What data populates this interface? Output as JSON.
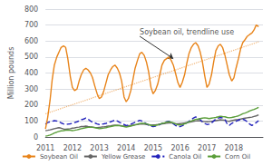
{
  "chart_data": {
    "type": "line",
    "ylabel": "Million pounds",
    "xlim": [
      2011.0,
      2019.08
    ],
    "xticks": [
      2011,
      2012,
      2013,
      2014,
      2015,
      2016,
      2017,
      2018
    ],
    "ylim": [
      0,
      800
    ],
    "yticks": [
      0,
      100,
      200,
      300,
      400,
      500,
      600,
      700,
      800
    ],
    "grid": true,
    "legend": "bottom",
    "x": [
      2011.0,
      2011.08,
      2011.17,
      2011.25,
      2011.33,
      2011.42,
      2011.5,
      2011.58,
      2011.67,
      2011.75,
      2011.83,
      2011.92,
      2012.0,
      2012.08,
      2012.17,
      2012.25,
      2012.33,
      2012.42,
      2012.5,
      2012.58,
      2012.67,
      2012.75,
      2012.83,
      2012.92,
      2013.0,
      2013.08,
      2013.17,
      2013.25,
      2013.33,
      2013.42,
      2013.5,
      2013.58,
      2013.67,
      2013.75,
      2013.83,
      2013.92,
      2014.0,
      2014.08,
      2014.17,
      2014.25,
      2014.33,
      2014.42,
      2014.5,
      2014.58,
      2014.67,
      2014.75,
      2014.83,
      2014.92,
      2015.0,
      2015.08,
      2015.17,
      2015.25,
      2015.33,
      2015.42,
      2015.5,
      2015.58,
      2015.67,
      2015.75,
      2015.83,
      2015.92,
      2016.0,
      2016.08,
      2016.17,
      2016.25,
      2016.33,
      2016.42,
      2016.5,
      2016.58,
      2016.67,
      2016.75,
      2016.83,
      2016.92,
      2017.0,
      2017.08,
      2017.17,
      2017.25,
      2017.33,
      2017.42,
      2017.5,
      2017.58,
      2017.67,
      2017.75,
      2017.83,
      2017.92,
      2018.0,
      2018.08,
      2018.17,
      2018.25,
      2018.33,
      2018.42,
      2018.5,
      2018.58,
      2018.67,
      2018.75,
      2018.83,
      2018.92
    ],
    "series": [
      {
        "color": "#E8841A",
        "line_style": "dotted",
        "x": [
          2011.0,
          2018.92
        ],
        "values": [
          145,
          595
        ]
      },
      {
        "name": "Soybean Oil",
        "color": "#E8841A",
        "line_style": "solid",
        "values": [
          50,
          120,
          230,
          360,
          450,
          500,
          530,
          560,
          570,
          560,
          490,
          380,
          310,
          290,
          300,
          350,
          390,
          420,
          430,
          420,
          400,
          370,
          320,
          270,
          240,
          250,
          290,
          340,
          390,
          420,
          440,
          450,
          430,
          400,
          350,
          250,
          220,
          240,
          290,
          360,
          430,
          480,
          520,
          530,
          510,
          470,
          410,
          310,
          270,
          290,
          330,
          390,
          450,
          480,
          490,
          500,
          480,
          450,
          400,
          340,
          310,
          340,
          390,
          460,
          520,
          560,
          580,
          590,
          570,
          530,
          470,
          380,
          310,
          330,
          390,
          470,
          540,
          570,
          580,
          560,
          510,
          450,
          390,
          350,
          370,
          430,
          490,
          550,
          590,
          610,
          630,
          640,
          650,
          670,
          700,
          690
        ]
      },
      {
        "name": "Yellow Grease",
        "color": "#666666",
        "line_style": "solid",
        "values": [
          40,
          42,
          45,
          48,
          52,
          55,
          58,
          55,
          50,
          48,
          50,
          52,
          55,
          57,
          60,
          62,
          65,
          65,
          68,
          65,
          63,
          62,
          60,
          58,
          60,
          62,
          63,
          65,
          68,
          70,
          72,
          74,
          73,
          72,
          70,
          68,
          68,
          70,
          72,
          74,
          76,
          78,
          80,
          82,
          80,
          78,
          76,
          74,
          75,
          76,
          78,
          80,
          82,
          84,
          86,
          88,
          87,
          86,
          84,
          82,
          84,
          86,
          88,
          90,
          92,
          95,
          98,
          100,
          102,
          100,
          98,
          96,
          95,
          96,
          98,
          100,
          102,
          105,
          108,
          106,
          104,
          100,
          98,
          102,
          105,
          108,
          110,
          112,
          115,
          118,
          120,
          122,
          124,
          128,
          132,
          138
        ]
      },
      {
        "name": "Canola Oil",
        "color": "#2222BB",
        "line_style": "dashed",
        "values": [
          80,
          90,
          95,
          98,
          102,
          100,
          95,
          88,
          82,
          78,
          80,
          82,
          85,
          90,
          95,
          100,
          108,
          112,
          118,
          112,
          100,
          92,
          88,
          82,
          78,
          80,
          82,
          85,
          90,
          95,
          100,
          105,
          100,
          92,
          85,
          78,
          72,
          75,
          80,
          86,
          92,
          98,
          104,
          100,
          92,
          82,
          74,
          68,
          65,
          68,
          72,
          78,
          85,
          90,
          95,
          98,
          92,
          82,
          72,
          65,
          65,
          70,
          78,
          88,
          98,
          110,
          118,
          125,
          118,
          108,
          95,
          85,
          78,
          80,
          88,
          100,
          112,
          118,
          122,
          118,
          108,
          82,
          72,
          85,
          92,
          98,
          105,
          110,
          112,
          105,
          95,
          82,
          72,
          80,
          90,
          102
        ]
      },
      {
        "name": "Corn Oil",
        "color": "#5A9E3A",
        "line_style": "solid",
        "values": [
          5,
          8,
          12,
          18,
          25,
          30,
          35,
          38,
          40,
          42,
          44,
          42,
          40,
          42,
          45,
          48,
          52,
          55,
          58,
          60,
          62,
          60,
          58,
          55,
          52,
          54,
          56,
          58,
          62,
          65,
          68,
          70,
          72,
          70,
          68,
          65,
          62,
          65,
          68,
          72,
          76,
          80,
          84,
          86,
          85,
          82,
          78,
          74,
          70,
          72,
          75,
          80,
          85,
          88,
          92,
          95,
          93,
          88,
          82,
          76,
          75,
          78,
          82,
          88,
          95,
          100,
          105,
          110,
          112,
          115,
          118,
          120,
          118,
          115,
          118,
          120,
          122,
          126,
          130,
          128,
          126,
          122,
          120,
          122,
          125,
          128,
          132,
          138,
          145,
          150,
          155,
          162,
          168,
          172,
          178,
          185
        ]
      }
    ],
    "annotations": [
      {
        "text": "Soybean oil, trendline use",
        "xy": [
          2015.75,
          490
        ],
        "xytext": [
          2014.5,
          630
        ]
      }
    ]
  }
}
